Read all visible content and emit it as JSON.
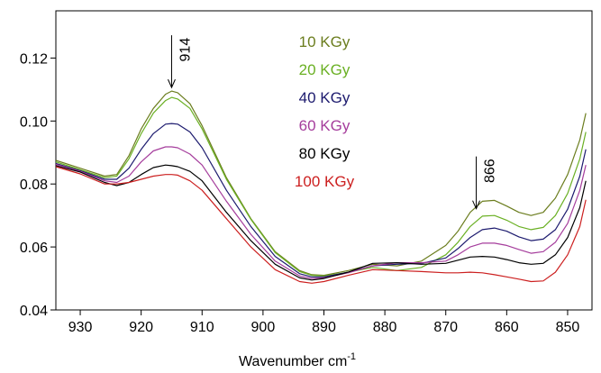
{
  "chart_data": {
    "type": "line",
    "title": "",
    "xlabel": "Wavenumber cm",
    "xlabel_superscript": "-1",
    "ylabel": "",
    "xlim": [
      934,
      846
    ],
    "ylim": [
      0.04,
      0.135
    ],
    "x_ticks": [
      930,
      920,
      910,
      900,
      890,
      880,
      870,
      860,
      850
    ],
    "y_ticks": [
      0.04,
      0.06,
      0.08,
      0.1,
      0.12
    ],
    "y_tick_labels": [
      "0.04",
      "0.06",
      "0.08",
      "0.10",
      "0.12"
    ],
    "grid": false,
    "legend_position": "top-center",
    "x": [
      934,
      930,
      926,
      924,
      922,
      920,
      918,
      916,
      915,
      914,
      912,
      910,
      906,
      902,
      898,
      894,
      892,
      890,
      886,
      882,
      878,
      874,
      870,
      868,
      866,
      864,
      862,
      860,
      858,
      856,
      854,
      852,
      850,
      848,
      847
    ],
    "series": [
      {
        "name": "10 KGy",
        "color": "#6b7d1e",
        "values": [
          0.0875,
          0.085,
          0.0825,
          0.083,
          0.089,
          0.0975,
          0.104,
          0.1085,
          0.1095,
          0.109,
          0.1055,
          0.0985,
          0.082,
          0.069,
          0.0585,
          0.0525,
          0.0512,
          0.051,
          0.0525,
          0.0545,
          0.054,
          0.0555,
          0.0605,
          0.065,
          0.071,
          0.0745,
          0.0748,
          0.073,
          0.071,
          0.07,
          0.071,
          0.0755,
          0.083,
          0.094,
          0.1025
        ]
      },
      {
        "name": "20 KGy",
        "color": "#6ab023",
        "values": [
          0.087,
          0.0845,
          0.082,
          0.0825,
          0.088,
          0.096,
          0.1025,
          0.1065,
          0.1075,
          0.107,
          0.104,
          0.0975,
          0.0815,
          0.0688,
          0.0582,
          0.0522,
          0.051,
          0.0508,
          0.052,
          0.0535,
          0.0525,
          0.0535,
          0.0575,
          0.0615,
          0.0665,
          0.0698,
          0.07,
          0.0685,
          0.0665,
          0.0655,
          0.0662,
          0.07,
          0.077,
          0.088,
          0.0965
        ]
      },
      {
        "name": "40 KGy",
        "color": "#1c1a6e",
        "values": [
          0.0865,
          0.0842,
          0.0815,
          0.0815,
          0.085,
          0.091,
          0.096,
          0.099,
          0.0992,
          0.099,
          0.0965,
          0.0915,
          0.078,
          0.0665,
          0.057,
          0.0515,
          0.0505,
          0.0505,
          0.052,
          0.054,
          0.0545,
          0.0548,
          0.0565,
          0.0595,
          0.063,
          0.0655,
          0.066,
          0.065,
          0.0632,
          0.062,
          0.0625,
          0.0655,
          0.072,
          0.0825,
          0.091
        ]
      },
      {
        "name": "60 KGy",
        "color": "#a53d9c",
        "values": [
          0.0862,
          0.084,
          0.081,
          0.0805,
          0.0825,
          0.087,
          0.0905,
          0.0918,
          0.0918,
          0.0915,
          0.0895,
          0.086,
          0.0745,
          0.064,
          0.0555,
          0.0508,
          0.05,
          0.0502,
          0.0518,
          0.054,
          0.055,
          0.055,
          0.0555,
          0.0575,
          0.06,
          0.0612,
          0.0612,
          0.0605,
          0.0592,
          0.058,
          0.0585,
          0.0615,
          0.0675,
          0.078,
          0.086
        ]
      },
      {
        "name": "80 KGy",
        "color": "#000000",
        "values": [
          0.0858,
          0.0838,
          0.0805,
          0.0795,
          0.0805,
          0.083,
          0.0852,
          0.086,
          0.0858,
          0.0855,
          0.084,
          0.081,
          0.071,
          0.062,
          0.0545,
          0.0502,
          0.0495,
          0.05,
          0.052,
          0.0548,
          0.055,
          0.0545,
          0.0548,
          0.0558,
          0.0568,
          0.057,
          0.0568,
          0.056,
          0.055,
          0.0545,
          0.0548,
          0.0575,
          0.063,
          0.0725,
          0.081
        ]
      },
      {
        "name": "100 KGy",
        "color": "#cc1f1f",
        "values": [
          0.0855,
          0.0832,
          0.08,
          0.08,
          0.0805,
          0.0815,
          0.0825,
          0.083,
          0.083,
          0.0828,
          0.081,
          0.078,
          0.069,
          0.06,
          0.0528,
          0.049,
          0.0485,
          0.049,
          0.051,
          0.0528,
          0.0525,
          0.0522,
          0.0518,
          0.0518,
          0.052,
          0.0518,
          0.0512,
          0.0505,
          0.0498,
          0.049,
          0.0492,
          0.052,
          0.0575,
          0.0665,
          0.075
        ]
      }
    ],
    "annotations": [
      {
        "text": "914",
        "x": 915
      },
      {
        "text": "866",
        "x": 865
      }
    ]
  }
}
